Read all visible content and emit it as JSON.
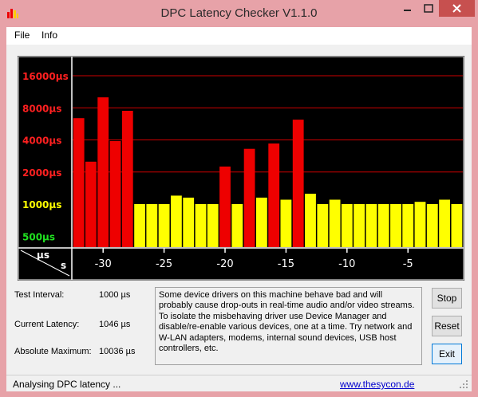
{
  "window": {
    "title": "DPC Latency Checker V1.1.0"
  },
  "menu": {
    "file": "File",
    "info": "Info"
  },
  "colors": {
    "red": "#ee0000",
    "yellow": "#ffff00",
    "chart_bg": "#000000",
    "label_red": "#ff2020",
    "label_yellow": "#ffff00",
    "label_green": "#20e020"
  },
  "chart_data": {
    "type": "bar",
    "x": [
      -32,
      -31,
      -30,
      -29,
      -28,
      -27,
      -26,
      -25,
      -24,
      -23,
      -22,
      -21,
      -20,
      -19,
      -18,
      -17,
      -16,
      -15,
      -14,
      -13,
      -12,
      -11,
      -10,
      -9,
      -8,
      -7,
      -6,
      -5,
      -4,
      -3,
      -2,
      -1
    ],
    "values": [
      6400,
      2500,
      10036,
      3900,
      7500,
      1000,
      1000,
      1000,
      1200,
      1150,
      1000,
      1000,
      2250,
      1000,
      3300,
      1150,
      3700,
      1100,
      6200,
      1250,
      1000,
      1100,
      1000,
      1000,
      1000,
      1000,
      1000,
      1000,
      1050,
      1000,
      1100,
      1000
    ],
    "bar_colors": [
      "red",
      "red",
      "red",
      "red",
      "red",
      "yellow",
      "yellow",
      "yellow",
      "yellow",
      "yellow",
      "yellow",
      "yellow",
      "red",
      "yellow",
      "red",
      "yellow",
      "red",
      "yellow",
      "red",
      "yellow",
      "yellow",
      "yellow",
      "yellow",
      "yellow",
      "yellow",
      "yellow",
      "yellow",
      "yellow",
      "yellow",
      "yellow",
      "yellow",
      "yellow"
    ],
    "y_ticks": [
      {
        "value": 500,
        "label": "500µs",
        "color": "green"
      },
      {
        "value": 1000,
        "label": "1000µs",
        "color": "yellow"
      },
      {
        "value": 2000,
        "label": "2000µs",
        "color": "red"
      },
      {
        "value": 4000,
        "label": "4000µs",
        "color": "red"
      },
      {
        "value": 8000,
        "label": "8000µs",
        "color": "red"
      },
      {
        "value": 16000,
        "label": "16000µs",
        "color": "red"
      }
    ],
    "x_ticks": [
      {
        "value": -30,
        "label": "-30"
      },
      {
        "value": -25,
        "label": "-25"
      },
      {
        "value": -20,
        "label": "-20"
      },
      {
        "value": -15,
        "label": "-15"
      },
      {
        "value": -10,
        "label": "-10"
      },
      {
        "value": -5,
        "label": "-5"
      }
    ],
    "y_unit_label": "µs",
    "x_unit_label": "s",
    "y_scale": "log2",
    "grid": true
  },
  "stats": {
    "test_interval_label": "Test Interval:",
    "test_interval_value": "1000 µs",
    "current_latency_label": "Current Latency:",
    "current_latency_value": "1046 µs",
    "absolute_max_label": "Absolute Maximum:",
    "absolute_max_value": "10036 µs"
  },
  "info_text": "Some device drivers on this machine behave bad and will probably cause drop-outs in real-time audio and/or video streams. To isolate the misbehaving driver use Device Manager and disable/re-enable various devices, one at a time. Try network and W-LAN adapters, modems, internal sound devices, USB host controllers, etc.",
  "buttons": {
    "stop": "Stop",
    "reset": "Reset",
    "exit": "Exit"
  },
  "status": {
    "text": "Analysing DPC latency ...",
    "link": "www.thesycon.de"
  },
  "icons": {
    "app": "bar-chart-icon",
    "minimize": "minimize-icon",
    "maximize": "maximize-icon",
    "close": "close-icon",
    "grip": "resize-grip-icon"
  }
}
